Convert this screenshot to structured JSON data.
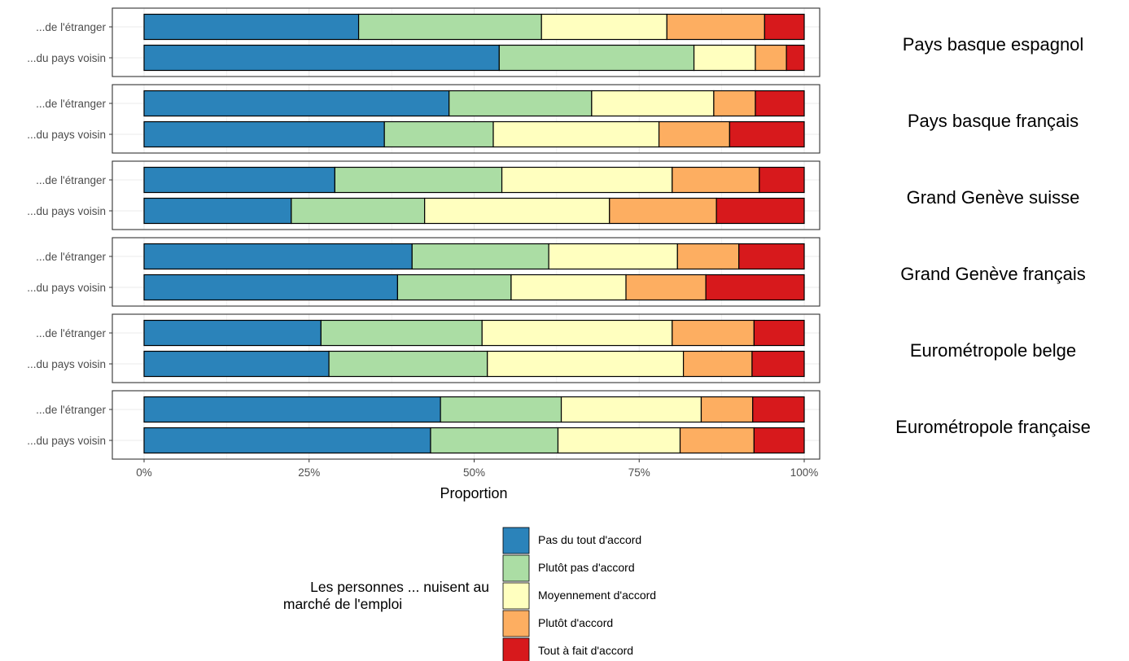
{
  "chart_data": {
    "type": "bar",
    "orientation": "horizontal",
    "stacked": true,
    "xlabel": "Proportion",
    "xlim": [
      0,
      1
    ],
    "x_ticks": [
      "0%",
      "25%",
      "50%",
      "75%",
      "100%"
    ],
    "categories": [
      "...de l'étranger",
      "...du pays voisin"
    ],
    "legend": {
      "title": [
        "Les personnes ... nuisent au",
        " marché de l'emploi"
      ],
      "position": "bottom",
      "entries": [
        {
          "label": "Pas du tout d'accord",
          "color": "#2b83ba"
        },
        {
          "label": "Plutôt pas d'accord",
          "color": "#abdda4"
        },
        {
          "label": "Moyennement d'accord",
          "color": "#ffffbf"
        },
        {
          "label": "Plutôt d'accord",
          "color": "#fdae61"
        },
        {
          "label": "Tout à fait d'accord",
          "color": "#d7191c"
        }
      ]
    },
    "facets": [
      {
        "name": "Pays basque espagnol",
        "rows": [
          {
            "category": "...de l'étranger",
            "values": [
              0.325,
              0.277,
              0.19,
              0.148,
              0.06
            ]
          },
          {
            "category": "...du pays voisin",
            "values": [
              0.538,
              0.295,
              0.093,
              0.047,
              0.027
            ]
          }
        ]
      },
      {
        "name": "Pays basque français",
        "rows": [
          {
            "category": "...de l'étranger",
            "values": [
              0.462,
              0.216,
              0.185,
              0.063,
              0.074
            ]
          },
          {
            "category": "...du pays voisin",
            "values": [
              0.364,
              0.165,
              0.251,
              0.107,
              0.113
            ]
          }
        ]
      },
      {
        "name": "Grand Genève suisse",
        "rows": [
          {
            "category": "...de l'étranger",
            "values": [
              0.289,
              0.253,
              0.258,
              0.132,
              0.068
            ]
          },
          {
            "category": "...du pays voisin",
            "values": [
              0.223,
              0.202,
              0.28,
              0.162,
              0.133
            ]
          }
        ]
      },
      {
        "name": "Grand Genève français",
        "rows": [
          {
            "category": "...de l'étranger",
            "values": [
              0.406,
              0.207,
              0.195,
              0.093,
              0.099
            ]
          },
          {
            "category": "...du pays voisin",
            "values": [
              0.384,
              0.172,
              0.174,
              0.121,
              0.149
            ]
          }
        ]
      },
      {
        "name": "Eurométropole belge",
        "rows": [
          {
            "category": "...de l'étranger",
            "values": [
              0.268,
              0.244,
              0.288,
              0.124,
              0.076
            ]
          },
          {
            "category": "...du pays voisin",
            "values": [
              0.28,
              0.24,
              0.297,
              0.104,
              0.079
            ]
          }
        ]
      },
      {
        "name": "Eurométropole française",
        "rows": [
          {
            "category": "...de l'étranger",
            "values": [
              0.449,
              0.183,
              0.212,
              0.078,
              0.078
            ]
          },
          {
            "category": "...du pays voisin",
            "values": [
              0.434,
              0.193,
              0.185,
              0.112,
              0.076
            ]
          }
        ]
      }
    ]
  }
}
